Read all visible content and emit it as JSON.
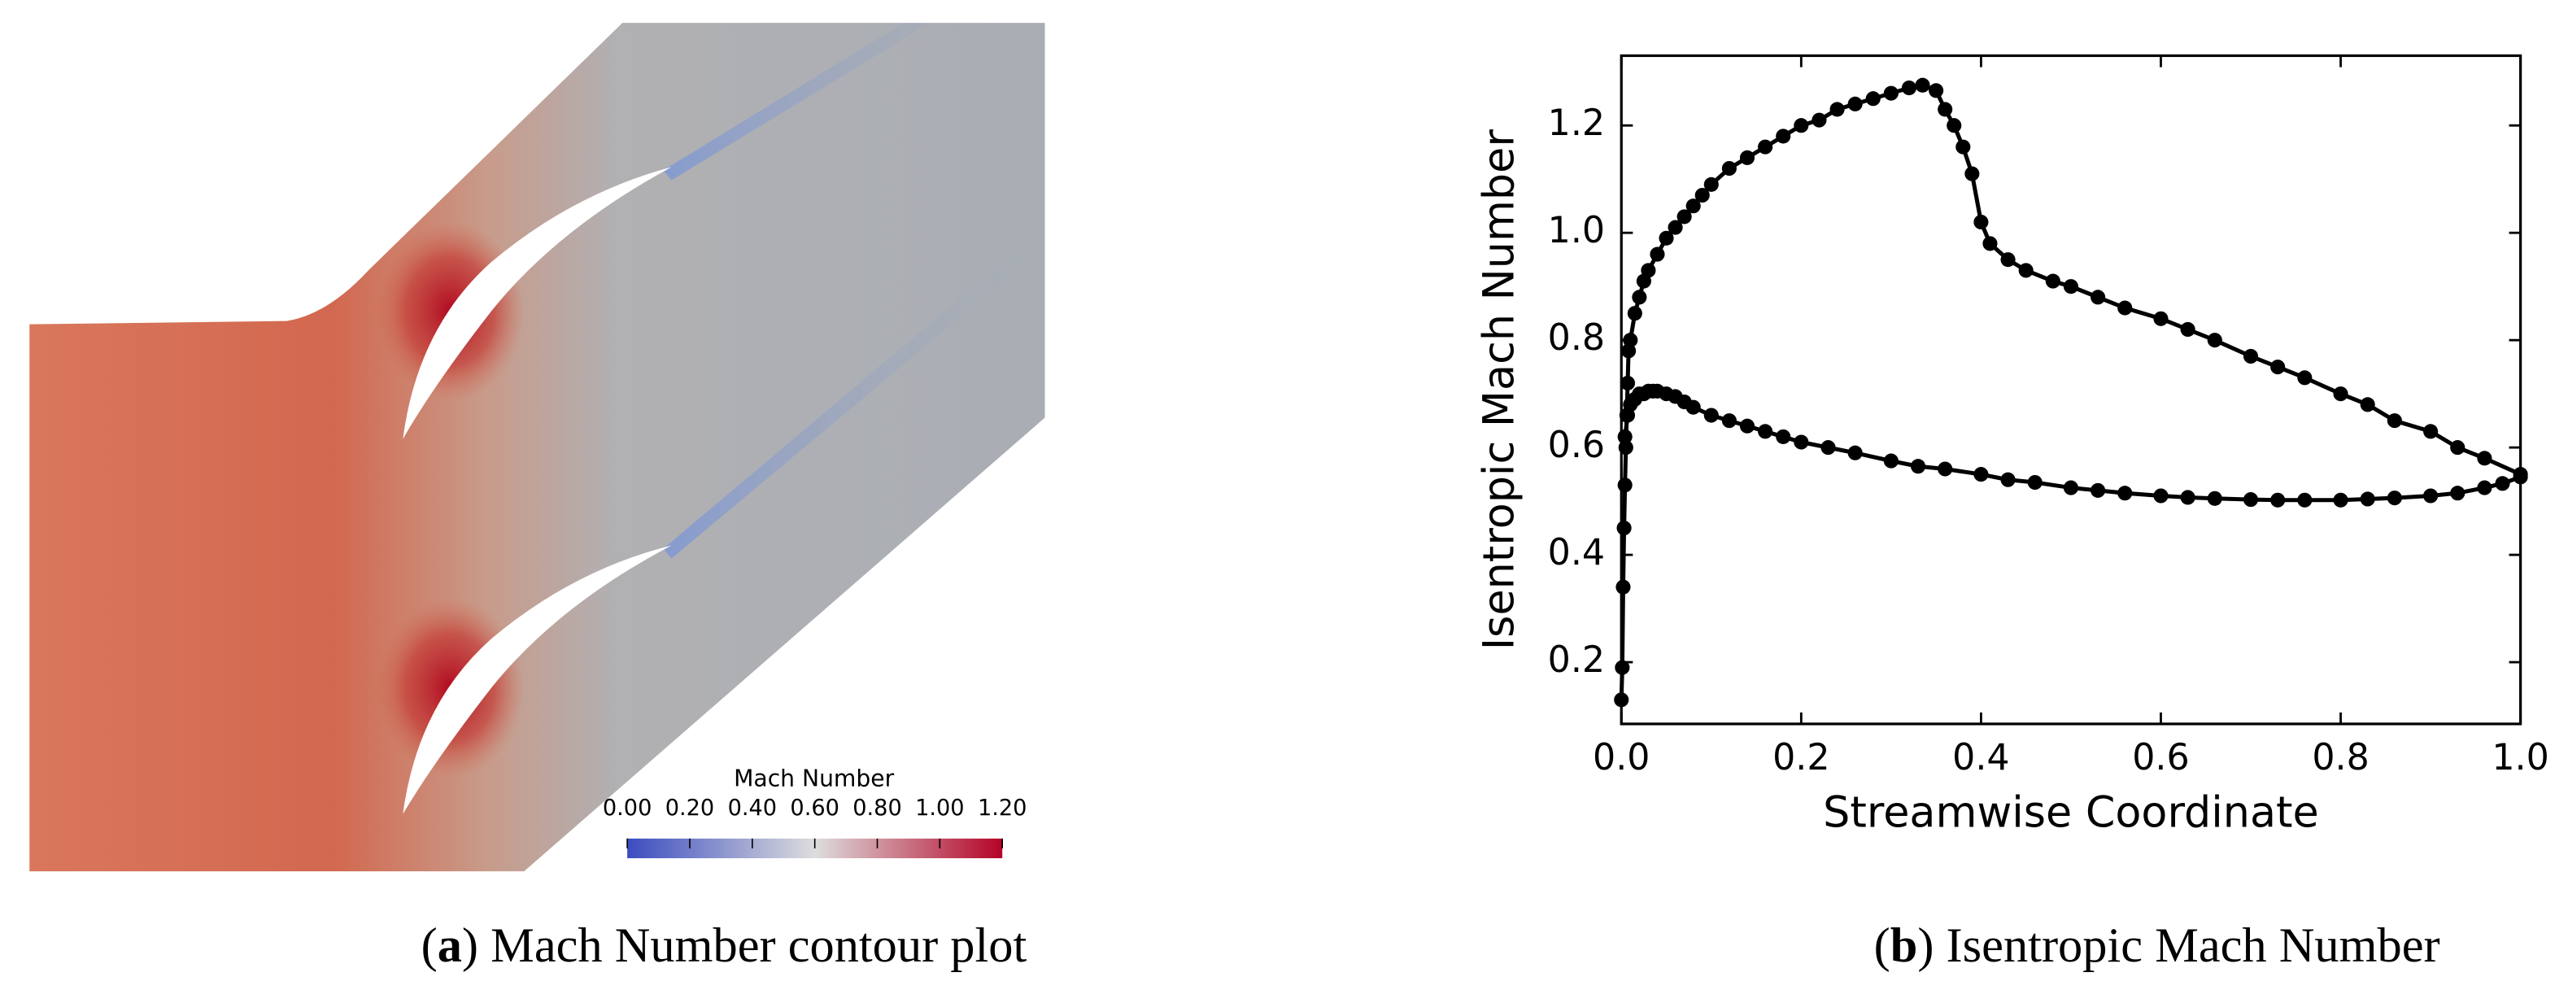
{
  "chart_data": [
    {
      "type": "contour",
      "colorbar_title": "Mach Number",
      "clim": [
        0,
        1.2
      ],
      "colorbar_colors": [
        "#3b4cc0",
        "#dddddd",
        "#b40426"
      ],
      "cticks": [
        {
          "value": 0,
          "label": "0.00"
        },
        {
          "value": 0.2,
          "label": "0.20"
        },
        {
          "value": 0.4,
          "label": "0.40"
        },
        {
          "value": 0.6,
          "label": "0.60"
        },
        {
          "value": 0.8,
          "label": "0.80"
        },
        {
          "value": 1.0,
          "label": "1.00"
        },
        {
          "value": 1.2,
          "label": "1.20"
        }
      ],
      "caption": {
        "open": "(",
        "label": "a",
        "text": ") Mach Number contour plot"
      }
    },
    {
      "type": "line",
      "xlabel": "Streamwise Coordinate",
      "ylabel": "Isentropic Mach Number",
      "xlim": [
        0,
        1
      ],
      "ylim": [
        0.085,
        1.33
      ],
      "xticks": [
        {
          "value": 0,
          "label": "0.0"
        },
        0.2,
        0.4,
        0.6,
        0.8,
        {
          "value": 1,
          "label": "1.0"
        }
      ],
      "yticks": [
        0.2,
        0.4,
        0.6,
        0.8,
        {
          "value": 1,
          "label": "1.0"
        },
        1.2
      ],
      "color": "#000000",
      "series": [
        {
          "x": [
            0.0,
            0.001,
            0.002,
            0.003,
            0.004,
            0.005,
            0.006,
            0.007,
            0.008,
            0.01,
            0.015,
            0.02,
            0.025,
            0.03,
            0.04,
            0.05,
            0.06,
            0.07,
            0.08,
            0.09,
            0.1,
            0.12,
            0.14,
            0.16,
            0.18,
            0.2,
            0.22,
            0.24,
            0.26,
            0.28,
            0.3,
            0.32,
            0.335,
            0.35,
            0.36,
            0.37,
            0.38,
            0.39,
            0.4,
            0.41,
            0.43,
            0.45,
            0.48,
            0.5,
            0.53,
            0.56,
            0.6,
            0.63,
            0.66,
            0.7,
            0.73,
            0.76,
            0.8,
            0.83,
            0.86,
            0.9,
            0.93,
            0.96,
            1.0
          ],
          "values": [
            0.13,
            0.19,
            0.34,
            0.45,
            0.53,
            0.6,
            0.66,
            0.72,
            0.78,
            0.8,
            0.85,
            0.88,
            0.91,
            0.93,
            0.96,
            0.99,
            1.01,
            1.03,
            1.05,
            1.07,
            1.09,
            1.12,
            1.14,
            1.16,
            1.18,
            1.2,
            1.21,
            1.23,
            1.24,
            1.25,
            1.26,
            1.27,
            1.275,
            1.265,
            1.23,
            1.2,
            1.16,
            1.11,
            1.02,
            0.98,
            0.95,
            0.93,
            0.91,
            0.9,
            0.88,
            0.86,
            0.84,
            0.82,
            0.8,
            0.77,
            0.75,
            0.73,
            0.7,
            0.68,
            0.65,
            0.63,
            0.6,
            0.58,
            0.55
          ]
        },
        {
          "x": [
            0.004,
            0.007,
            0.01,
            0.015,
            0.02,
            0.025,
            0.03,
            0.035,
            0.04,
            0.05,
            0.06,
            0.07,
            0.08,
            0.1,
            0.12,
            0.14,
            0.16,
            0.18,
            0.2,
            0.23,
            0.26,
            0.3,
            0.33,
            0.36,
            0.4,
            0.43,
            0.46,
            0.5,
            0.53,
            0.56,
            0.6,
            0.63,
            0.66,
            0.7,
            0.73,
            0.76,
            0.8,
            0.83,
            0.86,
            0.9,
            0.93,
            0.96,
            0.98,
            1.0
          ],
          "values": [
            0.62,
            0.66,
            0.68,
            0.69,
            0.7,
            0.7,
            0.705,
            0.705,
            0.705,
            0.7,
            0.695,
            0.685,
            0.675,
            0.66,
            0.65,
            0.64,
            0.63,
            0.62,
            0.61,
            0.6,
            0.59,
            0.575,
            0.565,
            0.56,
            0.55,
            0.54,
            0.535,
            0.525,
            0.52,
            0.515,
            0.51,
            0.507,
            0.505,
            0.503,
            0.502,
            0.502,
            0.502,
            0.504,
            0.506,
            0.51,
            0.515,
            0.525,
            0.533,
            0.545
          ]
        }
      ],
      "caption": {
        "open": "(",
        "label": "b",
        "text": ") Isentropic Mach Number"
      }
    }
  ]
}
